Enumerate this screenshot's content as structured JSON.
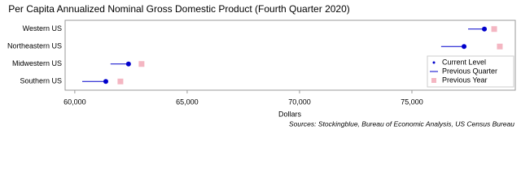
{
  "chart_data": {
    "type": "dot-arrow",
    "title": "Per Capita Annualized Nominal Gross Domestic Product (Fourth Quarter 2020)",
    "x_label": "Dollars",
    "source": "Sources: Stockingblue, Bureau of Economic Analysis, US Census Bureau",
    "categories": [
      "Western US",
      "Northeastern US",
      "Midwestern US",
      "Southern US"
    ],
    "series": [
      {
        "name": "Current Level",
        "color": "#0000cc",
        "values": [
          78225,
          77320,
          62390,
          61380
        ]
      },
      {
        "name": "Previous Quarter",
        "color": "#0000cc",
        "values": [
          77500,
          76300,
          61590,
          60330
        ]
      },
      {
        "name": "Previous Year",
        "color": "#f4b6c2",
        "values": [
          78660,
          78910,
          62970,
          62030
        ]
      }
    ],
    "xlim": [
      59570,
      79600
    ],
    "xticks": [
      {
        "value": 60000,
        "label": "60,000"
      },
      {
        "value": 65000,
        "label": "65,000"
      },
      {
        "value": 70000,
        "label": "70,000"
      },
      {
        "value": 75000,
        "label": "75,000"
      }
    ],
    "grid": false,
    "legend": "lower right"
  }
}
